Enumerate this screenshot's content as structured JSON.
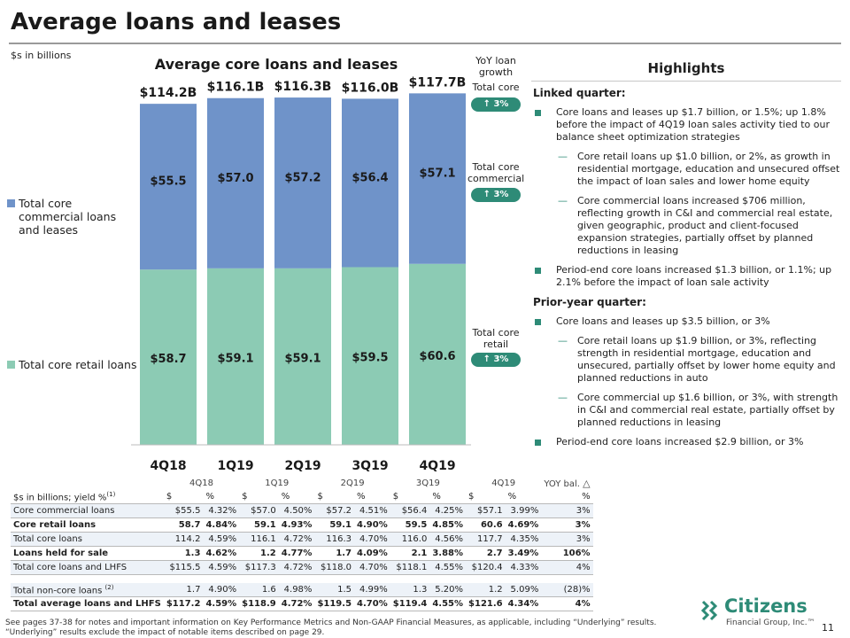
{
  "page": {
    "title": "Average loans and leases",
    "units": "$s in billions",
    "page_number": "11"
  },
  "chart_data": {
    "type": "bar",
    "title": "Average core loans and leases",
    "categories": [
      "4Q18",
      "1Q19",
      "2Q19",
      "3Q19",
      "4Q19"
    ],
    "totals": [
      "$114.2B",
      "$116.1B",
      "$116.3B",
      "$116.0B",
      "$117.7B"
    ],
    "series": [
      {
        "name": "Total core retail loans",
        "values": [
          58.7,
          59.1,
          59.1,
          59.5,
          60.6
        ],
        "labels": [
          "$58.7",
          "$59.1",
          "$59.1",
          "$59.5",
          "$60.6"
        ],
        "color": "#8ccbb4"
      },
      {
        "name": "Total core commercial loans and leases",
        "values": [
          55.5,
          57.0,
          57.2,
          56.4,
          57.1
        ],
        "labels": [
          "$55.5",
          "$57.0",
          "$57.2",
          "$56.4",
          "$57.1"
        ],
        "color": "#6f93c9"
      }
    ],
    "ylim": [
      0,
      120
    ]
  },
  "yoy": {
    "header": "YoY loan growth",
    "items": [
      {
        "label": "Total core",
        "value": "↑ 3%"
      },
      {
        "label": "Total core commercial",
        "value": "↑ 3%"
      },
      {
        "label": "Total core retail",
        "value": "↑ 3%"
      }
    ]
  },
  "highlights": {
    "title": "Highlights",
    "linked_quarter": "Linked quarter:",
    "lq_1": "Core loans and leases up $1.7 billion, or 1.5%; up 1.8% before the impact of 4Q19 loan sales activity tied to our balance sheet optimization strategies",
    "lq_1a": "Core retail loans up $1.0 billion, or 2%, as growth in residential mortgage, education and unsecured offset the impact of loan sales and lower home equity",
    "lq_1b": "Core commercial loans increased $706 million, reflecting growth in C&I and commercial real estate, given geographic, product and client-focused expansion strategies, partially offset by planned reductions in leasing",
    "lq_2": "Period-end core loans increased $1.3 billion, or 1.1%; up 2.1% before the impact of loan sale activity",
    "prior_year": "Prior-year quarter:",
    "py_1": "Core loans and leases up $3.5 billion, or 3%",
    "py_1a": "Core retail loans up $1.9 billion, or 3%, reflecting strength in residential mortgage, education and unsecured, partially offset by lower home equity and planned reductions in auto",
    "py_1b": "Core commercial up $1.6 billion, or 3%, with strength in C&I and commercial real estate, partially offset by planned reductions in leasing",
    "py_2": "Period-end core loans increased $2.9 billion, or 3%"
  },
  "table": {
    "quarters": [
      "4Q18",
      "1Q19",
      "2Q19",
      "3Q19",
      "4Q19"
    ],
    "yoy_header": "YOY bal.",
    "unit_label": "$s in billions; yield %",
    "unit_sup": "(1)",
    "dollar": "$",
    "pct": "%",
    "rows": [
      {
        "label": "Core commercial loans",
        "sup": "",
        "vals": [
          "$55.5",
          "4.32%",
          "$57.0",
          "4.50%",
          "$57.2",
          "4.51%",
          "$56.4",
          "4.25%",
          "$57.1",
          "3.99%"
        ],
        "yoy": "3%"
      },
      {
        "label": "Core retail loans",
        "sup": "",
        "vals": [
          "58.7",
          "4.84%",
          "59.1",
          "4.93%",
          "59.1",
          "4.90%",
          "59.5",
          "4.85%",
          "60.6",
          "4.69%"
        ],
        "yoy": "3%"
      },
      {
        "label": "Total core loans",
        "sup": "",
        "vals": [
          "114.2",
          "4.59%",
          "116.1",
          "4.72%",
          "116.3",
          "4.70%",
          "116.0",
          "4.56%",
          "117.7",
          "4.35%"
        ],
        "yoy": "3%"
      },
      {
        "label": "Loans held for sale",
        "sup": "",
        "vals": [
          "1.3",
          "4.62%",
          "1.2",
          "4.77%",
          "1.7",
          "4.09%",
          "2.1",
          "3.88%",
          "2.7",
          "3.49%"
        ],
        "yoy": "106%"
      },
      {
        "label": "Total core loans and LHFS",
        "sup": "",
        "vals": [
          "$115.5",
          "4.59%",
          "$117.3",
          "4.72%",
          "$118.0",
          "4.70%",
          "$118.1",
          "4.55%",
          "$120.4",
          "4.33%"
        ],
        "yoy": "4%"
      },
      {
        "label": "Total non-core loans",
        "sup": "(2)",
        "vals": [
          "1.7",
          "4.90%",
          "1.6",
          "4.98%",
          "1.5",
          "4.99%",
          "1.3",
          "5.20%",
          "1.2",
          "5.09%"
        ],
        "yoy": "(28)%"
      },
      {
        "label": "Total average loans and LHFS",
        "sup": "",
        "vals": [
          "$117.2",
          "4.59%",
          "$118.9",
          "4.72%",
          "$119.5",
          "4.70%",
          "$119.4",
          "4.55%",
          "$121.6",
          "4.34%"
        ],
        "yoy": "4%"
      }
    ]
  },
  "footnote": "See pages 37-38 for notes and important information on Key Performance Metrics and Non-GAAP Financial Measures, as applicable, including “Underlying” results. “Underlying” results exclude the impact of notable items described on page 29.",
  "logo": {
    "name": "Citizens",
    "sub": "Financial Group, Inc.™"
  }
}
